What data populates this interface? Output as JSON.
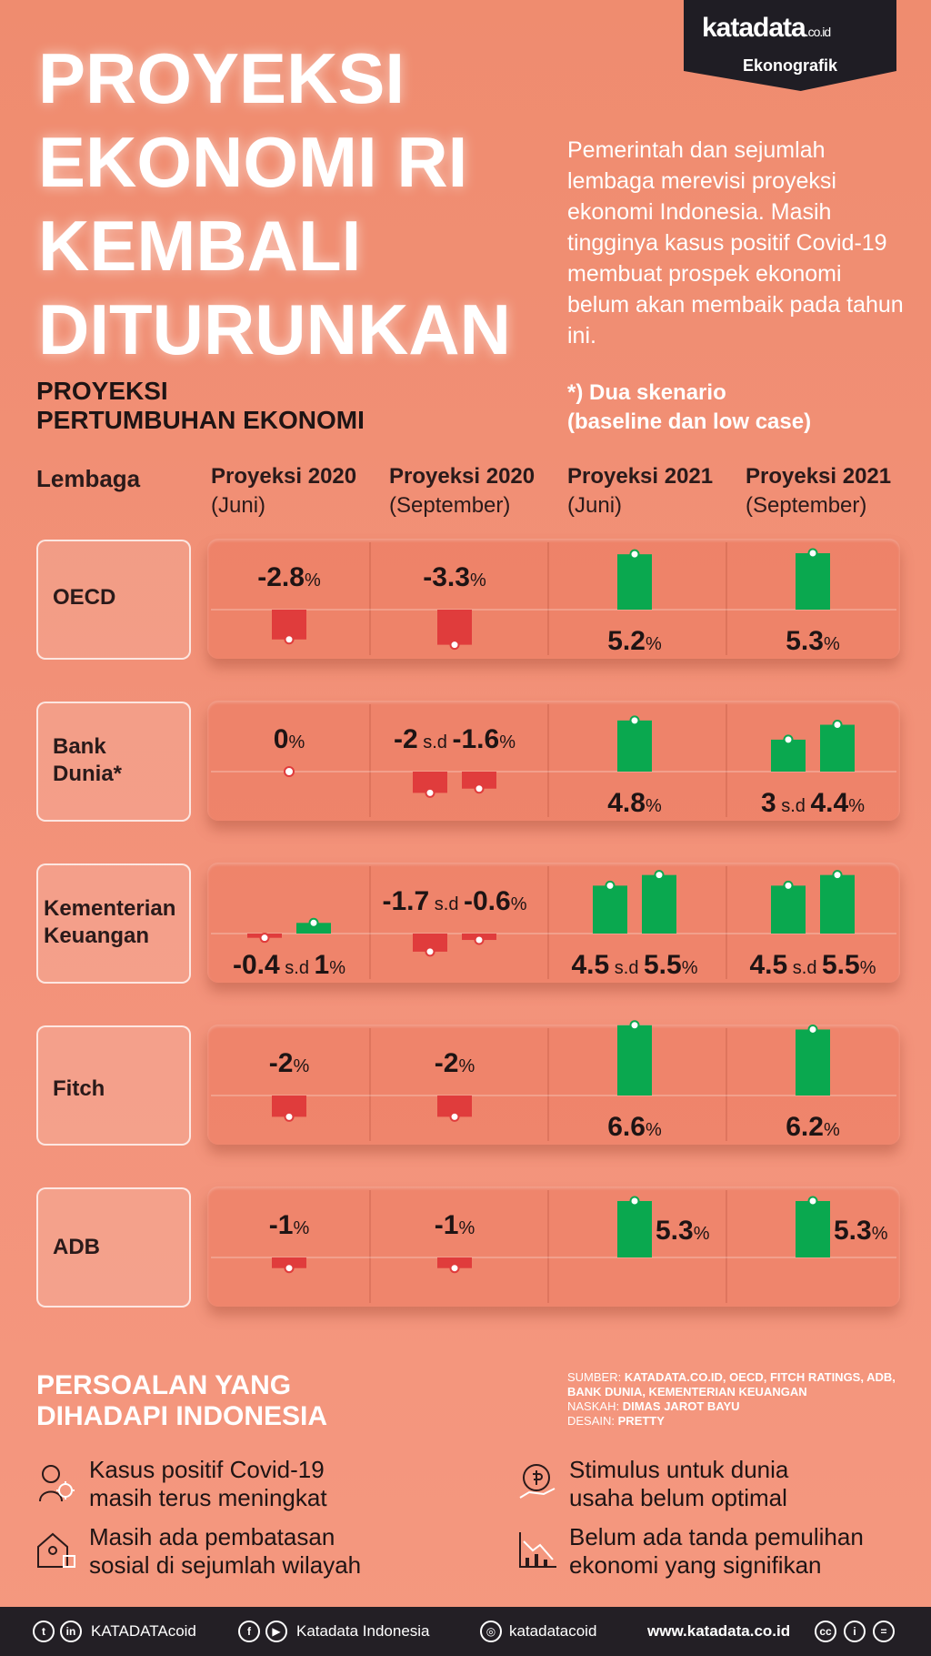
{
  "header": {
    "logo": "katadata",
    "logo_suffix": ".co.id",
    "logo_sub": "Ekonografik",
    "title_lines": [
      "PROYEKSI",
      "EKONOMI RI",
      "KEMBALI",
      "DITURUNKAN"
    ],
    "intro": "Pemerintah dan sejumlah lembaga merevisi proyeksi ekonomi Indonesia. Masih tingginya kasus positif Covid-19 membuat prospek ekonomi belum akan membaik pada tahun ini."
  },
  "section": {
    "subtitle_line1": "PROYEKSI",
    "subtitle_line2": "PERTUMBUHAN EKONOMI",
    "note_line1": "*) Dua skenario",
    "note_line2": "(baseline dan low case)"
  },
  "columns": {
    "lembaga": "Lembaga",
    "c1_title": "Proyeksi 2020",
    "c1_sub": "(Juni)",
    "c2_title": "Proyeksi 2020",
    "c2_sub": "(September)",
    "c3_title": "Proyeksi 2021",
    "c3_sub": "(Juni)",
    "c4_title": "Proyeksi 2021",
    "c4_sub": "(September)"
  },
  "institutions": {
    "i0": "OECD",
    "i1_line1": "Bank",
    "i1_line2": "Dunia*",
    "i2_line1": "Kementerian",
    "i2_line2": "Keuangan",
    "i3": "Fitch",
    "i4": "ADB"
  },
  "chart_data": {
    "type": "bar",
    "unit": "%",
    "range_word": "s.d",
    "institutions": [
      "OECD",
      "Bank Dunia*",
      "Kementerian Keuangan",
      "Fitch",
      "ADB"
    ],
    "periods": [
      "Proyeksi 2020 (Juni)",
      "Proyeksi 2020 (September)",
      "Proyeksi 2021 (Juni)",
      "Proyeksi 2021 (September)"
    ],
    "values": [
      [
        [
          -2.8
        ],
        [
          -3.3
        ],
        [
          5.2
        ],
        [
          5.3
        ]
      ],
      [
        [
          0
        ],
        [
          -2,
          -1.6
        ],
        [
          4.8
        ],
        [
          3,
          4.4
        ]
      ],
      [
        [
          -0.4,
          1
        ],
        [
          -1.7,
          -0.6
        ],
        [
          4.5,
          5.5
        ],
        [
          4.5,
          5.5
        ]
      ],
      [
        [
          -2
        ],
        [
          -2
        ],
        [
          6.6
        ],
        [
          6.2
        ]
      ],
      [
        [
          -1
        ],
        [
          -1
        ],
        [
          5.3
        ],
        [
          5.3
        ]
      ]
    ],
    "labels": [
      [
        [
          "-2.8"
        ],
        [
          "-3.3"
        ],
        [
          "5.2"
        ],
        [
          "5.3"
        ]
      ],
      [
        [
          "0"
        ],
        [
          "-2",
          "-1.6"
        ],
        [
          "4.8"
        ],
        [
          "3",
          "4.4"
        ]
      ],
      [
        [
          "-0.4",
          "1"
        ],
        [
          "-1.7",
          "-0.6"
        ],
        [
          "4.5",
          "5.5"
        ],
        [
          "4.5",
          "5.5"
        ]
      ],
      [
        [
          "-2"
        ],
        [
          "-2"
        ],
        [
          "6.6"
        ],
        [
          "6.2"
        ]
      ],
      [
        [
          "-1"
        ],
        [
          "-1"
        ],
        [
          "5.3"
        ],
        [
          "5.3"
        ]
      ]
    ],
    "colors": {
      "positive": "#0aa84f",
      "negative": "#e03c3c"
    }
  },
  "issues": {
    "title_line1": "PERSOALAN YANG",
    "title_line2": "DIHADAPI INDONESIA",
    "items": [
      {
        "line1": "Kasus positif Covid-19",
        "line2": "masih terus meningkat",
        "icon": "virus-person-icon"
      },
      {
        "line1": "Stimulus untuk dunia",
        "line2": "usaha belum optimal",
        "icon": "money-hand-icon"
      },
      {
        "line1": "Masih ada pembatasan",
        "line2": "sosial di sejumlah wilayah",
        "icon": "house-people-icon"
      },
      {
        "line1": "Belum ada tanda pemulihan",
        "line2": "ekonomi yang signifikan",
        "icon": "chart-decline-icon"
      }
    ]
  },
  "source": {
    "sumber_label": "SUMBER:",
    "sumber": "KATADATA.CO.ID, OECD, FITCH RATINGS, ADB, BANK DUNIA, KEMENTERIAN KEUANGAN",
    "naskah_label": "NASKAH:",
    "naskah": "DIMAS JAROT BAYU",
    "desain_label": "DESAIN:",
    "desain": "PRETTY"
  },
  "footer": {
    "social1": "KATADATAcoid",
    "social2": "Katadata Indonesia",
    "social3": "katadatacoid",
    "website": "www.katadata.co.id"
  }
}
